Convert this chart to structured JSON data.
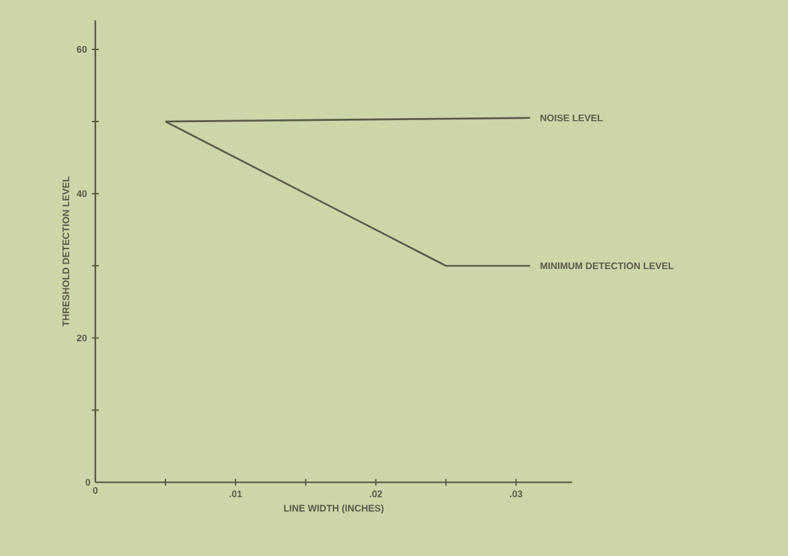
{
  "chart_data": {
    "type": "line",
    "xlabel": "LINE WIDTH (INCHES)",
    "ylabel": "THRESHOLD DETECTION LEVEL",
    "series": [
      {
        "name": "NOISE LEVEL",
        "color": "#5a5a48",
        "x": [
          0.005,
          0.031
        ],
        "values": [
          50,
          50.5
        ]
      },
      {
        "name": "MINIMUM DETECTION LEVEL",
        "color": "#5a5a48",
        "x": [
          0.005,
          0.025,
          0.031
        ],
        "values": [
          50,
          30,
          30
        ]
      }
    ],
    "xlim": [
      0,
      0.034
    ],
    "ylim": [
      0,
      64
    ],
    "xticks": [
      0,
      {
        "value": 0.005,
        "label": null
      },
      {
        "value": 0.01,
        "label": ".01"
      },
      {
        "value": 0.015,
        "label": null
      },
      {
        "value": 0.02,
        "label": ".02"
      },
      {
        "value": 0.025,
        "label": null
      },
      {
        "value": 0.03,
        "label": ".03"
      }
    ],
    "yticks": [
      0,
      {
        "value": 10,
        "label": null
      },
      20,
      {
        "value": 30,
        "label": null
      },
      40,
      {
        "value": 50,
        "label": null
      },
      60
    ],
    "grid": false,
    "legend": false,
    "marker": "none",
    "line_style": "solid"
  }
}
